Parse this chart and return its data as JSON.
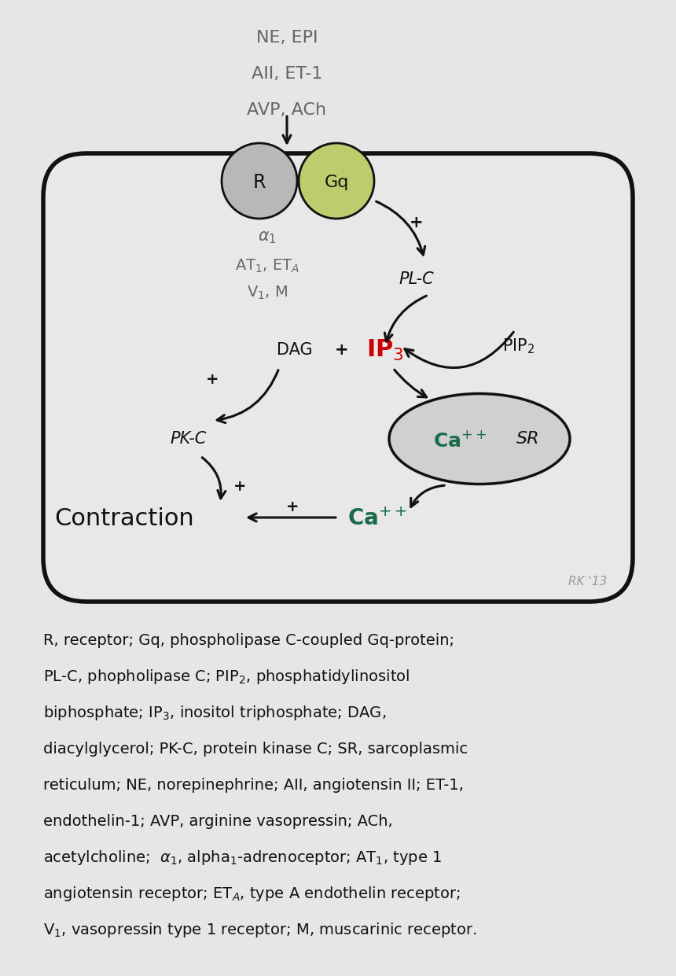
{
  "bg_color": "#e6e6e6",
  "colors": {
    "dark_green": "#1a6b4a",
    "red": "#cc0000",
    "gray_circle": "#b8b8b8",
    "green_circle": "#bfcc6e",
    "black": "#111111",
    "text_gray": "#666666",
    "rk_gray": "#999999",
    "cell_face": "#e8e8e8",
    "ellipse_face": "#d0d0d0"
  },
  "title_lines": [
    "NE, EPI",
    "AII, ET-1",
    "AVP, ACh"
  ]
}
